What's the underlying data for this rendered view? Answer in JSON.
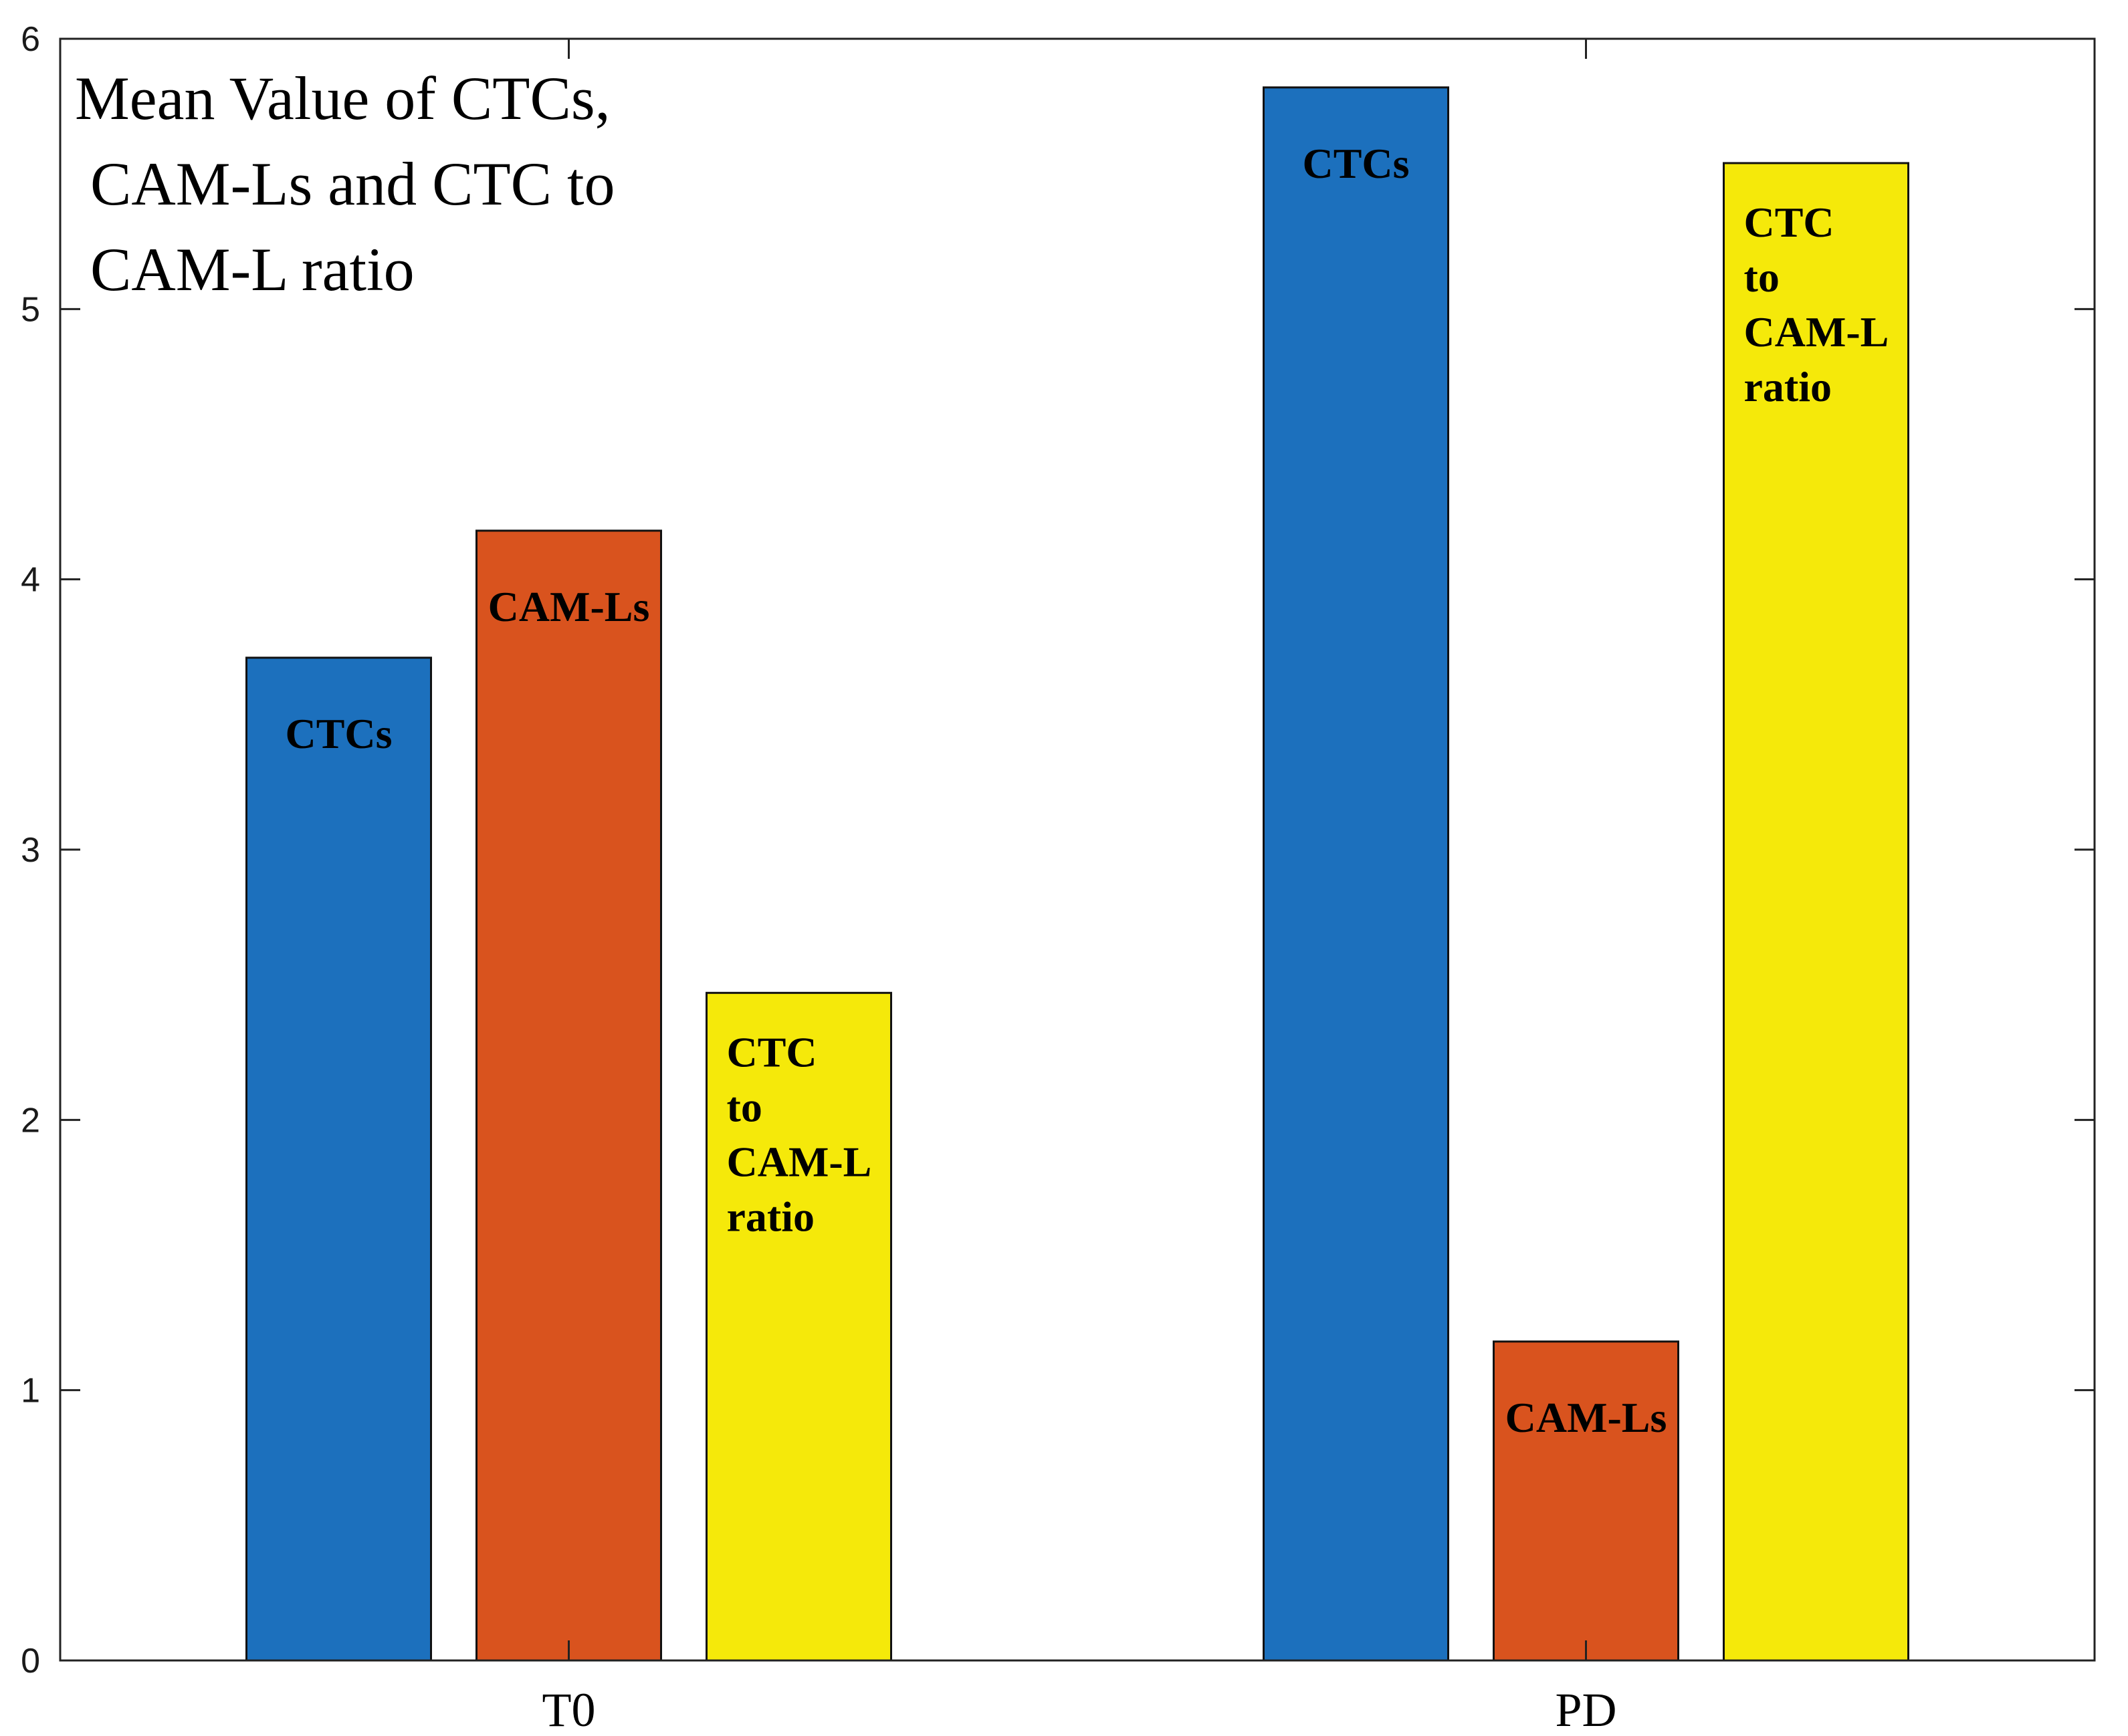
{
  "chart_data": {
    "type": "bar",
    "title_lines": [
      "Mean Value of CTCs,",
      " CAM-Ls and CTC to",
      " CAM-L ratio"
    ],
    "xlabel": "",
    "ylabel": "",
    "categories": [
      "T0",
      "PD"
    ],
    "ylim": [
      0,
      6
    ],
    "yticks": [
      0,
      1,
      2,
      3,
      4,
      5,
      6
    ],
    "grid": false,
    "series": [
      {
        "label_lines": [
          "CTCs"
        ],
        "color": "#1c70bd",
        "values": [
          3.71,
          5.82
        ]
      },
      {
        "label_lines": [
          "CAM-Ls"
        ],
        "color": "#d9531e",
        "values": [
          4.18,
          1.18
        ]
      },
      {
        "label_lines": [
          "CTC",
          "to",
          "CAM-L",
          "ratio"
        ],
        "color": "#f5e90a",
        "values": [
          2.47,
          5.54
        ]
      }
    ]
  }
}
